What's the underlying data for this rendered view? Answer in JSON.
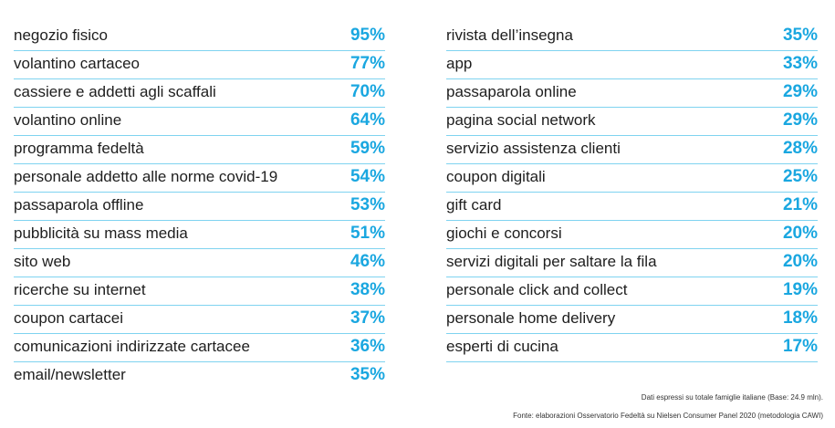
{
  "chart_data": {
    "type": "table",
    "title": "",
    "columns": [
      {
        "rows": [
          {
            "label": "negozio fisico",
            "value": 95
          },
          {
            "label": "volantino cartaceo",
            "value": 77
          },
          {
            "label": "cassiere e addetti agli scaffali",
            "value": 70
          },
          {
            "label": "volantino online",
            "value": 64
          },
          {
            "label": "programma fedeltà",
            "value": 59
          },
          {
            "label": "personale addetto alle norme covid-19",
            "value": 54
          },
          {
            "label": "passaparola offline",
            "value": 53
          },
          {
            "label": "pubblicità su mass media",
            "value": 51
          },
          {
            "label": "sito web",
            "value": 46
          },
          {
            "label": "ricerche su internet",
            "value": 38
          },
          {
            "label": "coupon cartacei",
            "value": 37
          },
          {
            "label": "comunicazioni indirizzate cartacee",
            "value": 36
          },
          {
            "label": "email/newsletter",
            "value": 35
          }
        ]
      },
      {
        "rows": [
          {
            "label": "rivista dell’insegna",
            "value": 35
          },
          {
            "label": "app",
            "value": 33
          },
          {
            "label": "passaparola online",
            "value": 29
          },
          {
            "label": "pagina social network",
            "value": 29
          },
          {
            "label": "servizio assistenza clienti",
            "value": 28
          },
          {
            "label": "coupon digitali",
            "value": 25
          },
          {
            "label": "gift card",
            "value": 21
          },
          {
            "label": "giochi e concorsi",
            "value": 20
          },
          {
            "label": "servizi digitali per saltare la fila",
            "value": 20
          },
          {
            "label": "personale click and collect",
            "value": 19
          },
          {
            "label": "personale home delivery",
            "value": 18
          },
          {
            "label": "esperti di cucina",
            "value": 17
          }
        ]
      }
    ],
    "unit": "%"
  },
  "colors": {
    "accent": "#1aa7e0",
    "separator": "#7fd3f0",
    "text": "#1e1e1e"
  },
  "notes": {
    "base": "Dati espressi su totale famiglie italiane (Base: 24.9 mln).",
    "source": "Fonte: elaborazioni Osservatorio Fedeltà su Nielsen Consumer Panel 2020 (metodologia CAWI)"
  }
}
